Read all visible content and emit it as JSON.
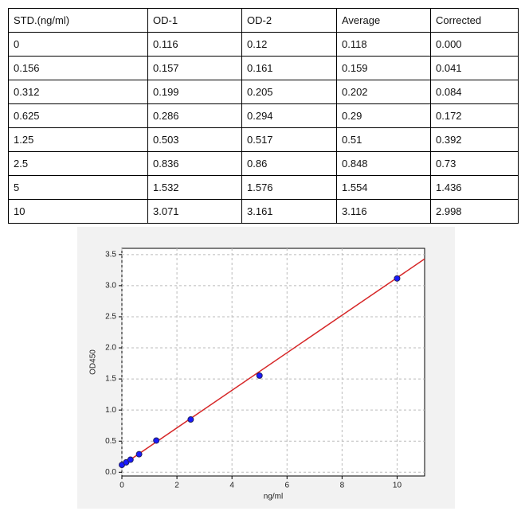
{
  "table": {
    "header": [
      "STD.(ng/ml)",
      "OD-1",
      "OD-2",
      "Average",
      "Corrected"
    ],
    "rows": [
      [
        "0",
        "0.116",
        "0.12",
        "0.118",
        "0.000"
      ],
      [
        "0.156",
        "0.157",
        "0.161",
        "0.159",
        "0.041"
      ],
      [
        "0.312",
        "0.199",
        "0.205",
        "0.202",
        "0.084"
      ],
      [
        "0.625",
        "0.286",
        "0.294",
        "0.29",
        "0.172"
      ],
      [
        "1.25",
        "0.503",
        "0.517",
        "0.51",
        "0.392"
      ],
      [
        "2.5",
        "0.836",
        "0.86",
        "0.848",
        "0.73"
      ],
      [
        "5",
        "1.532",
        "1.576",
        "1.554",
        "1.436"
      ],
      [
        "10",
        "3.071",
        "3.161",
        "3.116",
        "2.998"
      ]
    ]
  },
  "chart_data": {
    "type": "scatter",
    "x_label": "ng/ml",
    "y_label": "OD450",
    "xlim": [
      0,
      11
    ],
    "ylim": [
      -0.06,
      3.6
    ],
    "xticks": [
      0,
      2,
      4,
      6,
      8,
      10
    ],
    "yticks": [
      {
        "value": 0,
        "label": "0.0"
      },
      0.5,
      {
        "value": 1,
        "label": "1.0"
      },
      1.5,
      {
        "value": 2,
        "label": "2.0"
      },
      2.5,
      {
        "value": 3,
        "label": "3.0"
      },
      3.5
    ],
    "grid": true,
    "series": [
      {
        "type": "scatter",
        "color": "#1a1aff",
        "x": [
          0,
          0.156,
          0.312,
          0.625,
          1.25,
          2.5,
          5,
          10
        ],
        "values": [
          0.118,
          0.159,
          0.202,
          0.29,
          0.51,
          0.848,
          1.554,
          3.116
        ]
      },
      {
        "type": "line",
        "color": "#d62728",
        "x": [
          0,
          11
        ],
        "values": [
          0.11,
          3.43
        ]
      }
    ]
  }
}
